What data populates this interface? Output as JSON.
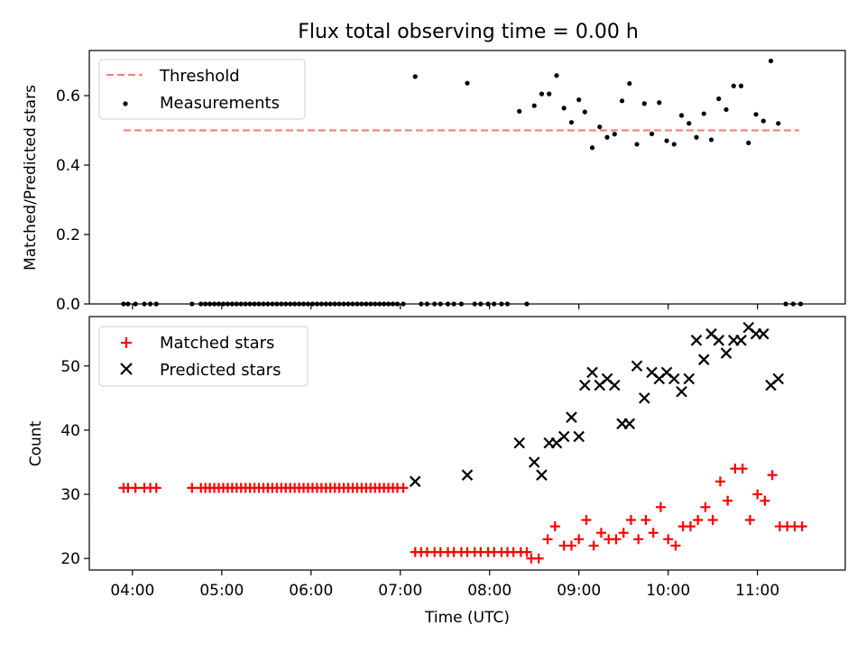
{
  "chart_data": [
    {
      "type": "scatter",
      "title": "Flux total observing time = 0.00 h",
      "xlabel": "",
      "ylabel": "Matched/Predicted stars",
      "xlim": [
        "03:31",
        "11:59"
      ],
      "ylim": [
        0,
        0.73
      ],
      "yticks": [
        0.0,
        0.2,
        0.4,
        0.6
      ],
      "ytick_labels": [
        "0.0",
        "0.2",
        "0.4",
        "0.6"
      ],
      "legend_position": "top-left",
      "threshold": {
        "name": "Threshold",
        "value": 0.5,
        "x_start": "03:54",
        "x_end": "11:28",
        "color": "#ff7f7f",
        "style": "dashed"
      },
      "series": [
        {
          "name": "Measurements",
          "color": "#000000",
          "marker": "dot",
          "points": [
            [
              "03:54",
              0
            ],
            [
              "03:57",
              0
            ],
            [
              "04:02",
              0
            ],
            [
              "04:08",
              0
            ],
            [
              "04:12",
              0
            ],
            [
              "04:16",
              0
            ],
            [
              "04:40",
              0
            ],
            [
              "04:46",
              0
            ],
            [
              "04:49",
              0
            ],
            [
              "04:52",
              0
            ],
            [
              "04:55",
              0
            ],
            [
              "04:58",
              0
            ],
            [
              "05:01",
              0
            ],
            [
              "05:04",
              0
            ],
            [
              "05:07",
              0
            ],
            [
              "05:10",
              0
            ],
            [
              "05:13",
              0
            ],
            [
              "05:16",
              0
            ],
            [
              "05:19",
              0
            ],
            [
              "05:22",
              0
            ],
            [
              "05:25",
              0
            ],
            [
              "05:28",
              0
            ],
            [
              "05:31",
              0
            ],
            [
              "05:34",
              0
            ],
            [
              "05:37",
              0
            ],
            [
              "05:40",
              0
            ],
            [
              "05:43",
              0
            ],
            [
              "05:46",
              0
            ],
            [
              "05:49",
              0
            ],
            [
              "05:52",
              0
            ],
            [
              "05:55",
              0
            ],
            [
              "05:58",
              0
            ],
            [
              "06:01",
              0
            ],
            [
              "06:04",
              0
            ],
            [
              "06:07",
              0
            ],
            [
              "06:10",
              0
            ],
            [
              "06:13",
              0
            ],
            [
              "06:16",
              0
            ],
            [
              "06:19",
              0
            ],
            [
              "06:22",
              0
            ],
            [
              "06:25",
              0
            ],
            [
              "06:28",
              0
            ],
            [
              "06:31",
              0
            ],
            [
              "06:34",
              0
            ],
            [
              "06:37",
              0
            ],
            [
              "06:40",
              0
            ],
            [
              "06:43",
              0
            ],
            [
              "06:46",
              0
            ],
            [
              "06:49",
              0
            ],
            [
              "06:52",
              0
            ],
            [
              "06:55",
              0
            ],
            [
              "06:58",
              0
            ],
            [
              "07:02",
              0
            ],
            [
              "07:10",
              0.655
            ],
            [
              "07:14",
              0
            ],
            [
              "07:18",
              0
            ],
            [
              "07:23",
              0
            ],
            [
              "07:27",
              0
            ],
            [
              "07:32",
              0
            ],
            [
              "07:36",
              0
            ],
            [
              "07:41",
              0
            ],
            [
              "07:45",
              0.636
            ],
            [
              "07:50",
              0
            ],
            [
              "07:54",
              0
            ],
            [
              "07:59",
              0
            ],
            [
              "08:03",
              0
            ],
            [
              "08:08",
              0
            ],
            [
              "08:12",
              0
            ],
            [
              "08:25",
              0
            ],
            [
              "08:20",
              0.555
            ],
            [
              "08:30",
              0.571
            ],
            [
              "08:35",
              0.605
            ],
            [
              "08:40",
              0.605
            ],
            [
              "08:45",
              0.658
            ],
            [
              "08:50",
              0.564
            ],
            [
              "08:55",
              0.523
            ],
            [
              "09:00",
              0.588
            ],
            [
              "09:04",
              0.553
            ],
            [
              "09:09",
              0.45
            ],
            [
              "09:14",
              0.51
            ],
            [
              "09:19",
              0.48
            ],
            [
              "09:24",
              0.489
            ],
            [
              "09:29",
              0.585
            ],
            [
              "09:34",
              0.635
            ],
            [
              "09:39",
              0.46
            ],
            [
              "09:44",
              0.577
            ],
            [
              "09:49",
              0.49
            ],
            [
              "09:54",
              0.58
            ],
            [
              "09:59",
              0.47
            ],
            [
              "10:04",
              0.46
            ],
            [
              "10:09",
              0.543
            ],
            [
              "10:14",
              0.52
            ],
            [
              "10:19",
              0.48
            ],
            [
              "10:24",
              0.548
            ],
            [
              "10:29",
              0.473
            ],
            [
              "10:34",
              0.591
            ],
            [
              "10:39",
              0.56
            ],
            [
              "10:44",
              0.628
            ],
            [
              "10:49",
              0.628
            ],
            [
              "10:54",
              0.464
            ],
            [
              "10:59",
              0.546
            ],
            [
              "11:04",
              0.527
            ],
            [
              "11:09",
              0.7
            ],
            [
              "11:14",
              0.52
            ],
            [
              "11:19",
              0
            ],
            [
              "11:24",
              0
            ],
            [
              "11:29",
              0
            ]
          ]
        }
      ]
    },
    {
      "type": "scatter",
      "title": "",
      "xlabel": "Time (UTC)",
      "ylabel": "Count",
      "xlim": [
        "03:31",
        "11:59"
      ],
      "ylim": [
        18.2,
        57.7
      ],
      "xticks": [
        "04:00",
        "05:00",
        "06:00",
        "07:00",
        "08:00",
        "09:00",
        "10:00",
        "11:00"
      ],
      "yticks": [
        20,
        30,
        40,
        50
      ],
      "ytick_labels": [
        "20",
        "30",
        "40",
        "50"
      ],
      "legend_position": "top-left",
      "series": [
        {
          "name": "Matched stars",
          "color": "#ff0000",
          "marker": "plus",
          "points": [
            [
              "03:54",
              31
            ],
            [
              "03:57",
              31
            ],
            [
              "04:02",
              31
            ],
            [
              "04:08",
              31
            ],
            [
              "04:12",
              31
            ],
            [
              "04:16",
              31
            ],
            [
              "04:40",
              31
            ],
            [
              "04:46",
              31
            ],
            [
              "04:49",
              31
            ],
            [
              "04:52",
              31
            ],
            [
              "04:55",
              31
            ],
            [
              "04:58",
              31
            ],
            [
              "05:01",
              31
            ],
            [
              "05:04",
              31
            ],
            [
              "05:07",
              31
            ],
            [
              "05:10",
              31
            ],
            [
              "05:13",
              31
            ],
            [
              "05:16",
              31
            ],
            [
              "05:19",
              31
            ],
            [
              "05:22",
              31
            ],
            [
              "05:25",
              31
            ],
            [
              "05:28",
              31
            ],
            [
              "05:31",
              31
            ],
            [
              "05:34",
              31
            ],
            [
              "05:37",
              31
            ],
            [
              "05:40",
              31
            ],
            [
              "05:43",
              31
            ],
            [
              "05:46",
              31
            ],
            [
              "05:49",
              31
            ],
            [
              "05:52",
              31
            ],
            [
              "05:55",
              31
            ],
            [
              "05:58",
              31
            ],
            [
              "06:01",
              31
            ],
            [
              "06:04",
              31
            ],
            [
              "06:07",
              31
            ],
            [
              "06:10",
              31
            ],
            [
              "06:13",
              31
            ],
            [
              "06:16",
              31
            ],
            [
              "06:19",
              31
            ],
            [
              "06:22",
              31
            ],
            [
              "06:25",
              31
            ],
            [
              "06:28",
              31
            ],
            [
              "06:31",
              31
            ],
            [
              "06:34",
              31
            ],
            [
              "06:37",
              31
            ],
            [
              "06:40",
              31
            ],
            [
              "06:43",
              31
            ],
            [
              "06:46",
              31
            ],
            [
              "06:49",
              31
            ],
            [
              "06:52",
              31
            ],
            [
              "06:55",
              31
            ],
            [
              "06:58",
              31
            ],
            [
              "07:02",
              31
            ],
            [
              "07:10",
              21
            ],
            [
              "07:14",
              21
            ],
            [
              "07:18",
              21
            ],
            [
              "07:23",
              21
            ],
            [
              "07:27",
              21
            ],
            [
              "07:32",
              21
            ],
            [
              "07:36",
              21
            ],
            [
              "07:41",
              21
            ],
            [
              "07:45",
              21
            ],
            [
              "07:50",
              21
            ],
            [
              "07:54",
              21
            ],
            [
              "07:59",
              21
            ],
            [
              "08:03",
              21
            ],
            [
              "08:08",
              21
            ],
            [
              "08:12",
              21
            ],
            [
              "08:16",
              21
            ],
            [
              "08:21",
              21
            ],
            [
              "08:25",
              21
            ],
            [
              "08:28",
              20
            ],
            [
              "08:33",
              20
            ],
            [
              "08:39",
              23
            ],
            [
              "08:44",
              25
            ],
            [
              "08:50",
              22
            ],
            [
              "08:55",
              22
            ],
            [
              "09:00",
              23
            ],
            [
              "09:05",
              26
            ],
            [
              "09:10",
              22
            ],
            [
              "09:15",
              24
            ],
            [
              "09:20",
              23
            ],
            [
              "09:25",
              23
            ],
            [
              "09:30",
              24
            ],
            [
              "09:35",
              26
            ],
            [
              "09:40",
              23
            ],
            [
              "09:45",
              26
            ],
            [
              "09:50",
              24
            ],
            [
              "09:55",
              28
            ],
            [
              "10:00",
              23
            ],
            [
              "10:05",
              22
            ],
            [
              "10:10",
              25
            ],
            [
              "10:15",
              25
            ],
            [
              "10:20",
              26
            ],
            [
              "10:25",
              28
            ],
            [
              "10:30",
              26
            ],
            [
              "10:35",
              32
            ],
            [
              "10:40",
              29
            ],
            [
              "10:45",
              34
            ],
            [
              "10:50",
              34
            ],
            [
              "10:55",
              26
            ],
            [
              "11:00",
              30
            ],
            [
              "11:05",
              29
            ],
            [
              "11:10",
              33
            ],
            [
              "11:15",
              25
            ],
            [
              "11:20",
              25
            ],
            [
              "11:25",
              25
            ],
            [
              "11:30",
              25
            ]
          ]
        },
        {
          "name": "Predicted stars",
          "color": "#000000",
          "marker": "x",
          "points": [
            [
              "07:10",
              32
            ],
            [
              "07:45",
              33
            ],
            [
              "08:20",
              38
            ],
            [
              "08:30",
              35
            ],
            [
              "08:35",
              33
            ],
            [
              "08:40",
              38
            ],
            [
              "08:45",
              38
            ],
            [
              "08:50",
              39
            ],
            [
              "08:55",
              42
            ],
            [
              "09:00",
              39
            ],
            [
              "09:04",
              47
            ],
            [
              "09:09",
              49
            ],
            [
              "09:14",
              47
            ],
            [
              "09:19",
              48
            ],
            [
              "09:24",
              47
            ],
            [
              "09:29",
              41
            ],
            [
              "09:34",
              41
            ],
            [
              "09:39",
              50
            ],
            [
              "09:44",
              45
            ],
            [
              "09:49",
              49
            ],
            [
              "09:54",
              48
            ],
            [
              "09:59",
              49
            ],
            [
              "10:04",
              48
            ],
            [
              "10:09",
              46
            ],
            [
              "10:14",
              48
            ],
            [
              "10:19",
              54
            ],
            [
              "10:24",
              51
            ],
            [
              "10:29",
              55
            ],
            [
              "10:34",
              54
            ],
            [
              "10:39",
              52
            ],
            [
              "10:44",
              54
            ],
            [
              "10:49",
              54
            ],
            [
              "10:54",
              56
            ],
            [
              "10:59",
              55
            ],
            [
              "11:04",
              55
            ],
            [
              "11:09",
              47
            ],
            [
              "11:14",
              48
            ]
          ]
        }
      ]
    }
  ]
}
